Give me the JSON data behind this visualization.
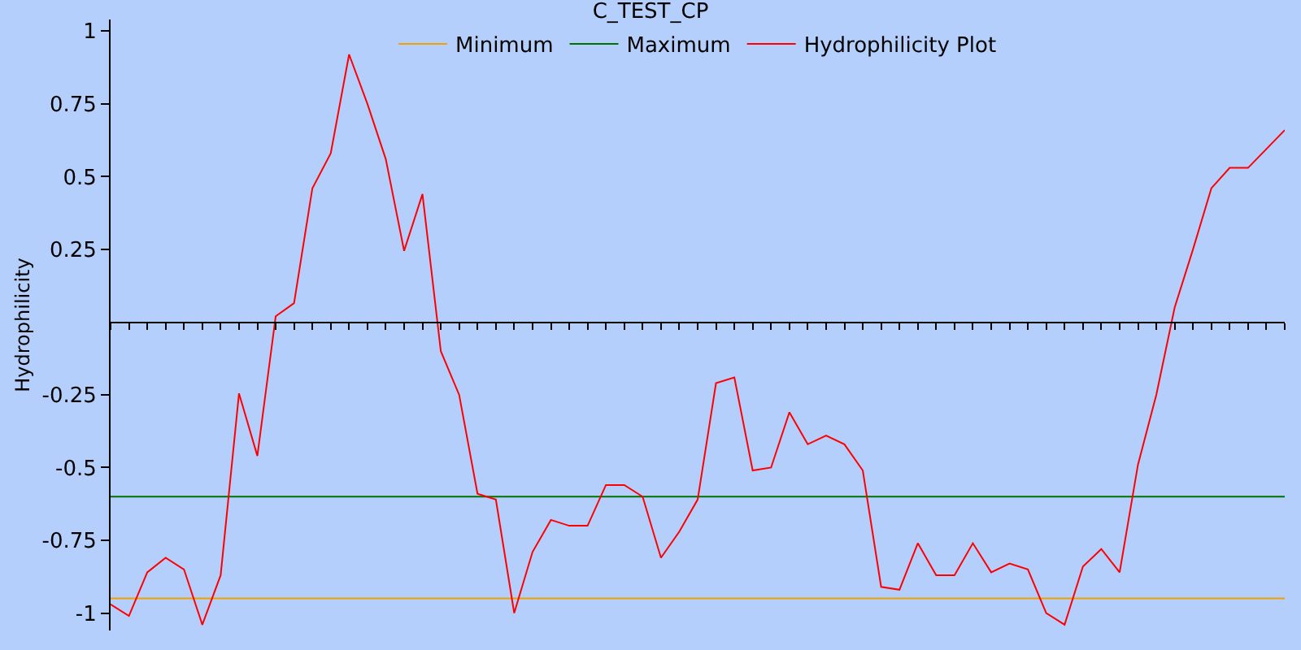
{
  "chart_data": {
    "type": "line",
    "title": "C_TEST_CP",
    "ylabel": "Hydrophilicity",
    "categories": [
      null,
      null,
      null,
      null,
      null,
      null,
      null,
      null,
      null,
      null,
      null,
      null,
      null,
      null,
      null,
      null,
      null,
      null,
      null,
      null,
      null,
      null,
      null,
      null,
      null,
      null,
      null,
      null,
      null,
      null,
      null,
      null,
      null,
      null,
      null,
      null,
      null,
      null,
      null,
      null,
      null,
      null,
      null,
      null,
      null,
      null,
      null,
      null,
      null,
      null,
      null,
      null,
      null,
      null,
      null,
      null,
      null,
      null,
      null,
      null,
      null,
      null,
      null,
      null,
      null
    ],
    "series": [
      {
        "name": "Minimum",
        "color": "#f0a000",
        "values": [
          -0.95,
          -0.95,
          -0.95,
          -0.95,
          -0.95,
          -0.95,
          -0.95,
          -0.95,
          -0.95,
          -0.95,
          -0.95,
          -0.95,
          -0.95,
          -0.95,
          -0.95,
          -0.95,
          -0.95,
          -0.95,
          -0.95,
          -0.95,
          -0.95,
          -0.95,
          -0.95,
          -0.95,
          -0.95,
          -0.95,
          -0.95,
          -0.95,
          -0.95,
          -0.95,
          -0.95,
          -0.95,
          -0.95,
          -0.95,
          -0.95,
          -0.95,
          -0.95,
          -0.95,
          -0.95,
          -0.95,
          -0.95,
          -0.95,
          -0.95,
          -0.95,
          -0.95,
          -0.95,
          -0.95,
          -0.95,
          -0.95,
          -0.95,
          -0.95,
          -0.95,
          -0.95,
          -0.95,
          -0.95,
          -0.95,
          -0.95,
          -0.95,
          -0.95,
          -0.95,
          -0.95,
          -0.95,
          -0.95,
          -0.95,
          -0.95
        ]
      },
      {
        "name": "Maximum",
        "color": "#007000",
        "values": [
          -0.6,
          -0.6,
          -0.6,
          -0.6,
          -0.6,
          -0.6,
          -0.6,
          -0.6,
          -0.6,
          -0.6,
          -0.6,
          -0.6,
          -0.6,
          -0.6,
          -0.6,
          -0.6,
          -0.6,
          -0.6,
          -0.6,
          -0.6,
          -0.6,
          -0.6,
          -0.6,
          -0.6,
          -0.6,
          -0.6,
          -0.6,
          -0.6,
          -0.6,
          -0.6,
          -0.6,
          -0.6,
          -0.6,
          -0.6,
          -0.6,
          -0.6,
          -0.6,
          -0.6,
          -0.6,
          -0.6,
          -0.6,
          -0.6,
          -0.6,
          -0.6,
          -0.6,
          -0.6,
          -0.6,
          -0.6,
          -0.6,
          -0.6,
          -0.6,
          -0.6,
          -0.6,
          -0.6,
          -0.6,
          -0.6,
          -0.6,
          -0.6,
          -0.6,
          -0.6,
          -0.6,
          -0.6,
          -0.6,
          -0.6,
          -0.6
        ]
      },
      {
        "name": "Hydrophilicity Plot",
        "color": "#ff0000",
        "values": [
          -0.97,
          -1.01,
          -0.86,
          -0.81,
          -0.85,
          -1.04,
          -0.87,
          -0.245,
          -0.46,
          0.02,
          0.065,
          0.46,
          0.58,
          0.92,
          0.75,
          0.56,
          0.245,
          0.44,
          -0.1,
          -0.25,
          -0.59,
          -0.61,
          -1.0,
          -0.79,
          -0.68,
          -0.7,
          -0.7,
          -0.56,
          -0.56,
          -0.6,
          -0.81,
          -0.72,
          -0.61,
          -0.21,
          -0.19,
          -0.51,
          -0.5,
          -0.31,
          -0.42,
          -0.39,
          -0.42,
          -0.51,
          -0.91,
          -0.92,
          -0.76,
          -0.87,
          -0.87,
          -0.76,
          -0.86,
          -0.83,
          -0.85,
          -1.0,
          -1.04,
          -0.84,
          -0.78,
          -0.86,
          -0.49,
          -0.25,
          0.05,
          0.25,
          0.46,
          0.53,
          0.53,
          0.595,
          0.66
        ]
      }
    ],
    "ylim": [
      -1.06,
      1.04
    ],
    "yticks": [
      1,
      0.75,
      0.5,
      0.25,
      -0.25,
      -0.5,
      -0.75,
      -1
    ],
    "tick_labels": "y",
    "grid": false,
    "legend": "top",
    "marker": "none",
    "line_style": "solid"
  }
}
